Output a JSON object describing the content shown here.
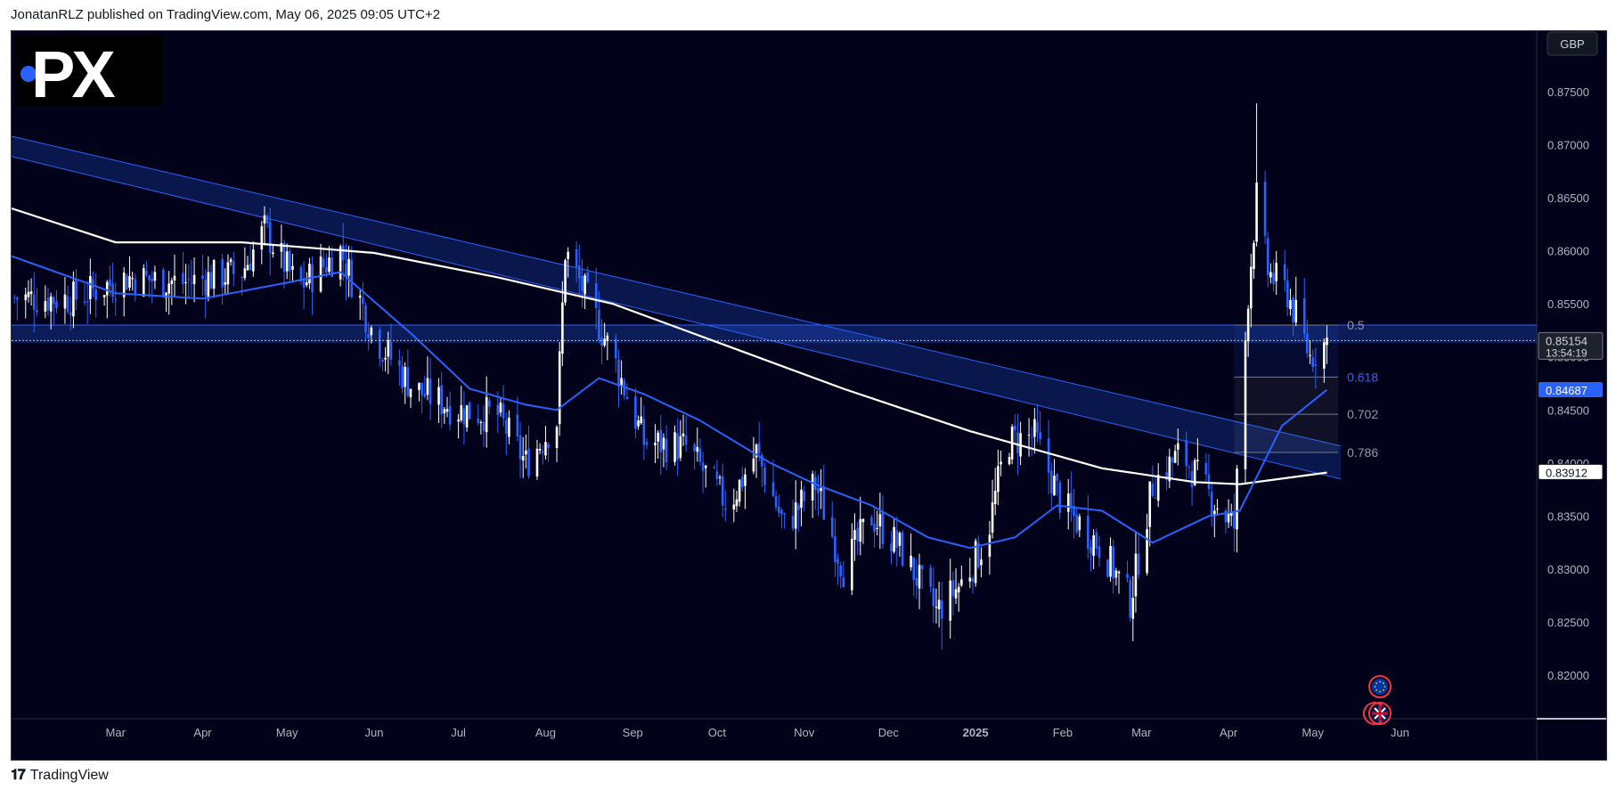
{
  "header": {
    "text": "JonatanRLZ published on TradingView.com, May 06, 2025 09:05 UTC+2"
  },
  "footer": {
    "brand": "TradingView",
    "logo_icon": "tradingview-logo-icon"
  },
  "watermark": {
    "text": ".PX"
  },
  "currency_button": "GBP",
  "chart_data": {
    "type": "candlestick",
    "currency": "GBP",
    "y_ticks": [
      0.82,
      0.825,
      0.83,
      0.835,
      0.84,
      0.845,
      0.85,
      0.855,
      0.86,
      0.865,
      0.87,
      0.875
    ],
    "y_tick_labels": [
      "0.82000",
      "0.82500",
      "0.83000",
      "0.83500",
      "0.84000",
      "0.84500",
      "0.85000",
      "0.85500",
      "0.86000",
      "0.86500",
      "0.87000",
      "0.87500"
    ],
    "ylim": [
      0.8159,
      0.8807
    ],
    "x_labels": [
      "Mar",
      "Apr",
      "May",
      "Jun",
      "Jul",
      "Aug",
      "Sep",
      "Oct",
      "Nov",
      "Dec",
      "2025",
      "Feb",
      "Mar",
      "Apr",
      "May",
      "Jun"
    ],
    "x_label_bold": "2025",
    "price_label": {
      "value": "0.85154",
      "countdown": "13:54:19"
    },
    "ma_labels": [
      {
        "value": "0.84687",
        "series": "ma50",
        "color": "#2962ff"
      },
      {
        "value": "0.83912",
        "series": "ma200",
        "color": "#ffffff"
      }
    ],
    "fib_levels": [
      {
        "label": "0.5",
        "price": 0.853,
        "color": "#9598a1"
      },
      {
        "label": "0.618",
        "price": 0.8481,
        "color": "#2962ff"
      },
      {
        "label": "0.702",
        "price": 0.8446,
        "color": "#9598a1"
      },
      {
        "label": "0.786",
        "price": 0.841,
        "color": "#9598a1"
      }
    ],
    "horizontal_zone": {
      "top": 0.853,
      "bottom": 0.8513
    },
    "channel": {
      "upper_start": {
        "date": "2024-01-24",
        "price": 0.8708
      },
      "upper_end": {
        "date": "2025-05-11",
        "price": 0.8416
      },
      "lower_start": {
        "date": "2024-01-24",
        "price": 0.8689
      },
      "lower_end": {
        "date": "2025-05-11",
        "price": 0.8385
      }
    },
    "ohlc_anchors": [
      [
        "2024-01-25",
        0.8556
      ],
      [
        "2024-02-15",
        0.8555
      ],
      [
        "2024-03-05",
        0.8575
      ],
      [
        "2024-03-25",
        0.857
      ],
      [
        "2024-04-15",
        0.858
      ],
      [
        "2024-04-23",
        0.862
      ],
      [
        "2024-05-05",
        0.8565
      ],
      [
        "2024-05-20",
        0.86
      ],
      [
        "2024-06-01",
        0.852
      ],
      [
        "2024-06-15",
        0.847
      ],
      [
        "2024-07-01",
        0.845
      ],
      [
        "2024-07-15",
        0.8445
      ],
      [
        "2024-07-25",
        0.84
      ],
      [
        "2024-08-05",
        0.844
      ],
      [
        "2024-08-08",
        0.86
      ],
      [
        "2024-08-15",
        0.856
      ],
      [
        "2024-08-25",
        0.85
      ],
      [
        "2024-09-05",
        0.842
      ],
      [
        "2024-09-20",
        0.8415
      ],
      [
        "2024-10-05",
        0.836
      ],
      [
        "2024-10-15",
        0.841
      ],
      [
        "2024-10-25",
        0.834
      ],
      [
        "2024-11-05",
        0.838
      ],
      [
        "2024-11-15",
        0.83
      ],
      [
        "2024-11-25",
        0.835
      ],
      [
        "2024-12-05",
        0.832
      ],
      [
        "2024-12-18",
        0.826
      ],
      [
        "2024-12-28",
        0.829
      ],
      [
        "2025-01-05",
        0.833
      ],
      [
        "2025-01-12",
        0.842
      ],
      [
        "2025-01-22",
        0.8425
      ],
      [
        "2025-02-01",
        0.836
      ],
      [
        "2025-02-15",
        0.832
      ],
      [
        "2025-02-25",
        0.827
      ],
      [
        "2025-03-05",
        0.838
      ],
      [
        "2025-03-15",
        0.841
      ],
      [
        "2025-03-25",
        0.837
      ],
      [
        "2025-04-03",
        0.834
      ],
      [
        "2025-04-08",
        0.856
      ],
      [
        "2025-04-11",
        0.865
      ],
      [
        "2025-04-15",
        0.858
      ],
      [
        "2025-04-22",
        0.856
      ],
      [
        "2025-04-30",
        0.85
      ],
      [
        "2025-05-06",
        0.8515
      ]
    ],
    "wick_extremes": {
      "high": {
        "date": "2025-04-11",
        "price": 0.8739
      },
      "low": {
        "date": "2024-12-20",
        "price": 0.8224
      }
    },
    "ma50_points": [
      [
        "2024-01-24",
        0.8595
      ],
      [
        "2024-03-01",
        0.856
      ],
      [
        "2024-04-01",
        0.8555
      ],
      [
        "2024-05-01",
        0.857
      ],
      [
        "2024-05-20",
        0.858
      ],
      [
        "2024-06-15",
        0.852
      ],
      [
        "2024-07-05",
        0.847
      ],
      [
        "2024-07-25",
        0.8455
      ],
      [
        "2024-08-05",
        0.845
      ],
      [
        "2024-08-20",
        0.848
      ],
      [
        "2024-09-05",
        0.8465
      ],
      [
        "2024-09-25",
        0.844
      ],
      [
        "2024-10-20",
        0.84
      ],
      [
        "2024-11-05",
        0.838
      ],
      [
        "2024-11-25",
        0.836
      ],
      [
        "2024-12-15",
        0.833
      ],
      [
        "2024-12-30",
        0.832
      ],
      [
        "2025-01-15",
        0.833
      ],
      [
        "2025-01-30",
        0.836
      ],
      [
        "2025-02-15",
        0.8355
      ],
      [
        "2025-03-05",
        0.8325
      ],
      [
        "2025-03-25",
        0.835
      ],
      [
        "2025-04-05",
        0.8355
      ],
      [
        "2025-04-20",
        0.8435
      ],
      [
        "2025-05-06",
        0.8469
      ]
    ],
    "ma200_points": [
      [
        "2024-01-24",
        0.864
      ],
      [
        "2024-03-01",
        0.8608
      ],
      [
        "2024-04-15",
        0.8608
      ],
      [
        "2024-06-01",
        0.8598
      ],
      [
        "2024-07-15",
        0.8575
      ],
      [
        "2024-08-25",
        0.855
      ],
      [
        "2024-10-05",
        0.851
      ],
      [
        "2024-11-15",
        0.847
      ],
      [
        "2024-12-30",
        0.843
      ],
      [
        "2025-02-15",
        0.8395
      ],
      [
        "2025-03-20",
        0.8382
      ],
      [
        "2025-04-05",
        0.838
      ],
      [
        "2025-05-06",
        0.8391
      ]
    ],
    "event_icons": [
      "eu-flag-icon",
      "uk-flag-icon"
    ]
  }
}
